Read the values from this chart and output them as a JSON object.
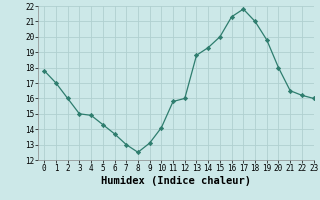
{
  "x": [
    0,
    1,
    2,
    3,
    4,
    5,
    6,
    7,
    8,
    9,
    10,
    11,
    12,
    13,
    14,
    15,
    16,
    17,
    18,
    19,
    20,
    21,
    22,
    23
  ],
  "y": [
    17.8,
    17.0,
    16.0,
    15.0,
    14.9,
    14.3,
    13.7,
    13.0,
    12.5,
    13.1,
    14.1,
    15.8,
    16.0,
    18.8,
    19.3,
    20.0,
    21.3,
    21.8,
    21.0,
    19.8,
    18.0,
    16.5,
    16.2,
    16.0
  ],
  "line_color": "#2e7d6e",
  "marker": "D",
  "marker_size": 2.2,
  "bg_color": "#cce8e8",
  "grid_color": "#b0d0d0",
  "xlabel": "Humidex (Indice chaleur)",
  "ylim": [
    12,
    22
  ],
  "xlim": [
    -0.5,
    23
  ],
  "yticks": [
    12,
    13,
    14,
    15,
    16,
    17,
    18,
    19,
    20,
    21,
    22
  ],
  "xticks": [
    0,
    1,
    2,
    3,
    4,
    5,
    6,
    7,
    8,
    9,
    10,
    11,
    12,
    13,
    14,
    15,
    16,
    17,
    18,
    19,
    20,
    21,
    22,
    23
  ],
  "tick_fontsize": 5.5,
  "xlabel_fontsize": 7.5
}
